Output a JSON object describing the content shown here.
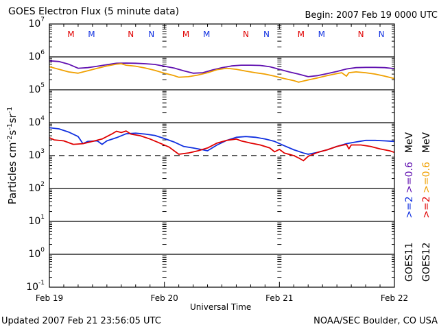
{
  "header": {
    "title": "GOES Electron Flux (5 minute data)",
    "begin": "Begin: 2007 Feb 19 0000 UTC"
  },
  "footer": {
    "updated": "Updated 2007 Feb 21 23:56:05 UTC",
    "credit": "NOAA/SEC Boulder, CO USA"
  },
  "chart_data": {
    "type": "line",
    "title": "GOES Electron Flux (5 minute data)",
    "xlabel": "Universal Time",
    "ylabel_parts": {
      "base": "Particles cm",
      "e1": "-2",
      "s": "s",
      "e2": "-1",
      "sr": "sr",
      "e3": "-1"
    },
    "yscale": "log",
    "ylim": [
      0.1,
      10000000
    ],
    "xlim_hours": [
      0,
      72
    ],
    "x_tick_labels": [
      "Feb 19",
      "Feb 20",
      "Feb 21",
      "Feb 22"
    ],
    "x_tick_hours": [
      0,
      24,
      48,
      72
    ],
    "y_ticks": [
      {
        "base": "10",
        "exp": "7",
        "value": 10000000
      },
      {
        "base": "10",
        "exp": "6",
        "value": 1000000
      },
      {
        "base": "10",
        "exp": "5",
        "value": 100000
      },
      {
        "base": "10",
        "exp": "4",
        "value": 10000
      },
      {
        "base": "10",
        "exp": "3",
        "value": 1000
      },
      {
        "base": "10",
        "exp": "2",
        "value": 100
      },
      {
        "base": "10",
        "exp": "1",
        "value": 10
      },
      {
        "base": "10",
        "exp": "0",
        "value": 1
      },
      {
        "base": "10",
        "exp": "-1",
        "value": 0.1
      }
    ],
    "threshold": {
      "value": 1000,
      "style": "dashed"
    },
    "grid": "decades",
    "markers": [
      {
        "label": "M",
        "hour": 4.5,
        "color": "#e00000"
      },
      {
        "label": "M",
        "hour": 8.8,
        "color": "#1030e0"
      },
      {
        "label": "N",
        "hour": 17.0,
        "color": "#e00000"
      },
      {
        "label": "N",
        "hour": 21.3,
        "color": "#1030e0"
      },
      {
        "label": "M",
        "hour": 28.5,
        "color": "#e00000"
      },
      {
        "label": "M",
        "hour": 32.8,
        "color": "#1030e0"
      },
      {
        "label": "N",
        "hour": 41.0,
        "color": "#e00000"
      },
      {
        "label": "N",
        "hour": 45.3,
        "color": "#1030e0"
      },
      {
        "label": "M",
        "hour": 52.5,
        "color": "#e00000"
      },
      {
        "label": "M",
        "hour": 56.8,
        "color": "#1030e0"
      },
      {
        "label": "N",
        "hour": 65.0,
        "color": "#e00000"
      },
      {
        "label": "N",
        "hour": 69.3,
        "color": "#1030e0"
      }
    ],
    "legend": {
      "placement": "right",
      "satellites": [
        {
          "name": "GOES11",
          "hi": ">=2",
          "lo": ">=0.6",
          "unit": "MeV",
          "hi_color": "#1030e0",
          "lo_color": "#6010b0"
        },
        {
          "name": "GOES12",
          "hi": ">=2",
          "lo": ">=0.6",
          "unit": "MeV",
          "hi_color": "#e00000",
          "lo_color": "#f0a000"
        }
      ]
    },
    "series": [
      {
        "name": "GOES11 >=0.6 MeV",
        "color": "#6010b0",
        "points": [
          [
            0,
            760000
          ],
          [
            2,
            720000
          ],
          [
            4,
            600000
          ],
          [
            6,
            450000
          ],
          [
            8,
            470000
          ],
          [
            10,
            520000
          ],
          [
            12,
            580000
          ],
          [
            14,
            640000
          ],
          [
            16,
            650000
          ],
          [
            18,
            640000
          ],
          [
            20,
            620000
          ],
          [
            22,
            590000
          ],
          [
            24,
            520000
          ],
          [
            26,
            460000
          ],
          [
            28,
            380000
          ],
          [
            30,
            320000
          ],
          [
            32,
            330000
          ],
          [
            34,
            400000
          ],
          [
            36,
            470000
          ],
          [
            38,
            530000
          ],
          [
            40,
            560000
          ],
          [
            42,
            560000
          ],
          [
            44,
            550000
          ],
          [
            46,
            500000
          ],
          [
            48,
            420000
          ],
          [
            50,
            350000
          ],
          [
            52,
            300000
          ],
          [
            54,
            250000
          ],
          [
            56,
            270000
          ],
          [
            58,
            310000
          ],
          [
            60,
            360000
          ],
          [
            62,
            430000
          ],
          [
            64,
            470000
          ],
          [
            66,
            480000
          ],
          [
            68,
            480000
          ],
          [
            70,
            470000
          ],
          [
            72,
            440000
          ]
        ]
      },
      {
        "name": "GOES12 >=0.6 MeV",
        "color": "#f0a000",
        "points": [
          [
            0,
            500000
          ],
          [
            2,
            420000
          ],
          [
            4,
            350000
          ],
          [
            6,
            320000
          ],
          [
            8,
            380000
          ],
          [
            10,
            450000
          ],
          [
            12,
            530000
          ],
          [
            14,
            600000
          ],
          [
            15,
            620000
          ],
          [
            16,
            560000
          ],
          [
            18,
            520000
          ],
          [
            20,
            460000
          ],
          [
            22,
            390000
          ],
          [
            24,
            320000
          ],
          [
            26,
            270000
          ],
          [
            27,
            240000
          ],
          [
            29,
            250000
          ],
          [
            31,
            280000
          ],
          [
            33,
            330000
          ],
          [
            35,
            410000
          ],
          [
            37,
            450000
          ],
          [
            39,
            420000
          ],
          [
            41,
            370000
          ],
          [
            43,
            330000
          ],
          [
            45,
            300000
          ],
          [
            47,
            260000
          ],
          [
            49,
            220000
          ],
          [
            51,
            190000
          ],
          [
            52,
            170000
          ],
          [
            54,
            200000
          ],
          [
            56,
            230000
          ],
          [
            58,
            270000
          ],
          [
            60,
            310000
          ],
          [
            61,
            330000
          ],
          [
            62,
            260000
          ],
          [
            62.5,
            330000
          ],
          [
            64,
            350000
          ],
          [
            66,
            330000
          ],
          [
            68,
            300000
          ],
          [
            70,
            260000
          ],
          [
            72,
            220000
          ]
        ]
      },
      {
        "name": "GOES11 >=2 MeV",
        "color": "#1030e0",
        "points": [
          [
            0,
            7000
          ],
          [
            2,
            6500
          ],
          [
            4,
            5200
          ],
          [
            6,
            3800
          ],
          [
            7,
            2300
          ],
          [
            8,
            2700
          ],
          [
            10,
            2800
          ],
          [
            11,
            2200
          ],
          [
            12,
            2800
          ],
          [
            14,
            3500
          ],
          [
            16,
            4600
          ],
          [
            18,
            4800
          ],
          [
            20,
            4500
          ],
          [
            22,
            4100
          ],
          [
            24,
            3300
          ],
          [
            26,
            2600
          ],
          [
            28,
            1900
          ],
          [
            30,
            1700
          ],
          [
            32,
            1500
          ],
          [
            33,
            1400
          ],
          [
            35,
            2100
          ],
          [
            37,
            2900
          ],
          [
            39,
            3600
          ],
          [
            41,
            3800
          ],
          [
            43,
            3600
          ],
          [
            45,
            3200
          ],
          [
            47,
            2700
          ],
          [
            49,
            2000
          ],
          [
            51,
            1500
          ],
          [
            53,
            1200
          ],
          [
            54,
            1100
          ],
          [
            56,
            1250
          ],
          [
            58,
            1500
          ],
          [
            60,
            1900
          ],
          [
            62,
            2300
          ],
          [
            64,
            2600
          ],
          [
            66,
            2900
          ],
          [
            68,
            2900
          ],
          [
            70,
            2800
          ],
          [
            72,
            2700
          ]
        ]
      },
      {
        "name": "GOES12 >=2 MeV",
        "color": "#e00000",
        "points": [
          [
            0,
            3500
          ],
          [
            1,
            3000
          ],
          [
            3,
            2800
          ],
          [
            5,
            2200
          ],
          [
            7,
            2300
          ],
          [
            9,
            2700
          ],
          [
            11,
            3200
          ],
          [
            13,
            4500
          ],
          [
            14,
            5500
          ],
          [
            15,
            5000
          ],
          [
            16,
            5600
          ],
          [
            17,
            4500
          ],
          [
            19,
            4000
          ],
          [
            21,
            3200
          ],
          [
            23,
            2400
          ],
          [
            25,
            1800
          ],
          [
            27,
            1100
          ],
          [
            29,
            1200
          ],
          [
            31,
            1400
          ],
          [
            33,
            1700
          ],
          [
            35,
            2400
          ],
          [
            37,
            2900
          ],
          [
            39,
            3200
          ],
          [
            40,
            2800
          ],
          [
            42,
            2400
          ],
          [
            44,
            2100
          ],
          [
            46,
            1700
          ],
          [
            47,
            1300
          ],
          [
            48,
            1550
          ],
          [
            49,
            1200
          ],
          [
            51,
            1000
          ],
          [
            52,
            850
          ],
          [
            53,
            700
          ],
          [
            54,
            950
          ],
          [
            56,
            1250
          ],
          [
            58,
            1500
          ],
          [
            60,
            1900
          ],
          [
            62,
            2200
          ],
          [
            62.5,
            1600
          ],
          [
            63,
            2100
          ],
          [
            65,
            2100
          ],
          [
            67,
            1900
          ],
          [
            69,
            1600
          ],
          [
            71,
            1400
          ],
          [
            72,
            1250
          ]
        ]
      }
    ]
  }
}
